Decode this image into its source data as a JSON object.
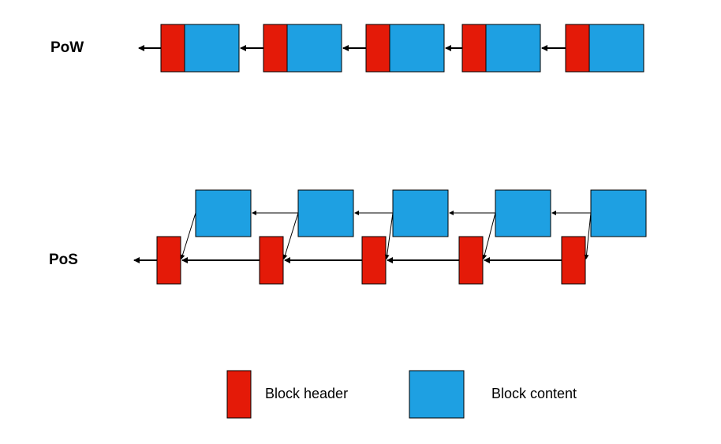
{
  "colors": {
    "header": "#e41a08",
    "content": "#1ea0e2",
    "stroke": "#000000",
    "background": "#ffffff"
  },
  "pow": {
    "label": "PoW",
    "block_count": 5
  },
  "pos": {
    "label": "PoS",
    "block_count": 5
  },
  "legend": {
    "header_label": "Block header",
    "content_label": "Block content"
  }
}
